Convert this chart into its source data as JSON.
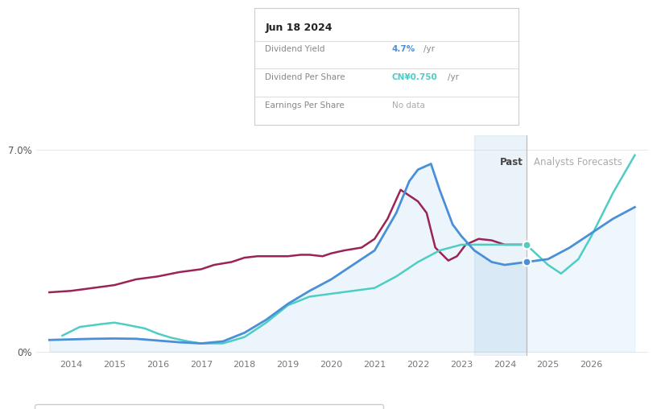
{
  "bg_color": "#ffffff",
  "grid_color": "#e8e8e8",
  "past_label": "Past",
  "forecast_label": "Analysts Forecasts",
  "forecast_start_x": 2024.5,
  "highlight_region_start": 2023.3,
  "highlight_region_end": 2024.5,
  "tooltip_date": "Jun 18 2024",
  "tooltip_dy_label": "Dividend Yield",
  "tooltip_dy_value": "4.7%",
  "tooltip_dy_unit": "/yr",
  "tooltip_dps_label": "Dividend Per Share",
  "tooltip_dps_value": "CN¥0.750",
  "tooltip_dps_unit": "/yr",
  "tooltip_eps_label": "Earnings Per Share",
  "tooltip_eps_value": "No data",
  "legend_items": [
    "Dividend Yield",
    "Dividend Per Share",
    "Earnings Per Share"
  ],
  "div_yield_color": "#4a90d9",
  "div_per_share_color": "#4ecdc4",
  "earnings_per_share_color": "#9b2355",
  "div_yield_x": [
    2013.5,
    2014.0,
    2014.5,
    2015.0,
    2015.5,
    2016.0,
    2016.5,
    2017.0,
    2017.5,
    2018.0,
    2018.5,
    2019.0,
    2019.5,
    2020.0,
    2020.5,
    2021.0,
    2021.5,
    2021.8,
    2022.0,
    2022.3,
    2022.5,
    2022.8,
    2023.0,
    2023.3,
    2023.7,
    2024.0,
    2024.5
  ],
  "div_yield_y": [
    0.4,
    0.42,
    0.44,
    0.45,
    0.44,
    0.38,
    0.32,
    0.28,
    0.35,
    0.65,
    1.1,
    1.65,
    2.1,
    2.5,
    3.0,
    3.5,
    4.8,
    5.9,
    6.3,
    6.5,
    5.6,
    4.4,
    4.0,
    3.5,
    3.1,
    3.0,
    3.1
  ],
  "div_yield_future_x": [
    2024.5,
    2025.0,
    2025.5,
    2026.0,
    2026.5,
    2027.0
  ],
  "div_yield_future_y": [
    3.1,
    3.2,
    3.6,
    4.1,
    4.6,
    5.0
  ],
  "div_per_share_x": [
    2013.8,
    2014.2,
    2014.7,
    2015.0,
    2015.3,
    2015.7,
    2016.0,
    2016.3,
    2016.7,
    2017.0,
    2017.5,
    2018.0,
    2018.5,
    2019.0,
    2019.5,
    2020.0,
    2020.5,
    2021.0,
    2021.5,
    2022.0,
    2022.5,
    2023.0,
    2023.5,
    2024.0,
    2024.5
  ],
  "div_per_share_y": [
    0.55,
    0.85,
    0.95,
    1.0,
    0.92,
    0.8,
    0.62,
    0.48,
    0.35,
    0.28,
    0.28,
    0.5,
    1.0,
    1.6,
    1.9,
    2.0,
    2.1,
    2.2,
    2.6,
    3.1,
    3.5,
    3.7,
    3.7,
    3.7,
    3.7
  ],
  "div_per_share_future_x": [
    2024.5,
    2025.0,
    2025.3,
    2025.7,
    2026.0,
    2026.5,
    2027.0
  ],
  "div_per_share_future_y": [
    3.7,
    3.0,
    2.7,
    3.2,
    4.0,
    5.5,
    6.8
  ],
  "earnings_per_share_x": [
    2013.5,
    2014.0,
    2014.5,
    2015.0,
    2015.5,
    2016.0,
    2016.5,
    2017.0,
    2017.3,
    2017.7,
    2018.0,
    2018.3,
    2018.7,
    2019.0,
    2019.3,
    2019.5,
    2019.8,
    2020.0,
    2020.3,
    2020.7,
    2021.0,
    2021.3,
    2021.6,
    2021.8,
    2022.0,
    2022.2,
    2022.4,
    2022.7,
    2022.9,
    2023.1,
    2023.4,
    2023.7,
    2024.0,
    2024.4
  ],
  "earnings_per_share_y": [
    2.05,
    2.1,
    2.2,
    2.3,
    2.5,
    2.6,
    2.75,
    2.85,
    3.0,
    3.1,
    3.25,
    3.3,
    3.3,
    3.3,
    3.35,
    3.35,
    3.3,
    3.4,
    3.5,
    3.6,
    3.9,
    4.6,
    5.6,
    5.4,
    5.2,
    4.8,
    3.6,
    3.15,
    3.3,
    3.7,
    3.9,
    3.85,
    3.7,
    3.7
  ],
  "xmin": 2013.2,
  "xmax": 2027.3,
  "ymin": -0.15,
  "ymax": 7.5
}
